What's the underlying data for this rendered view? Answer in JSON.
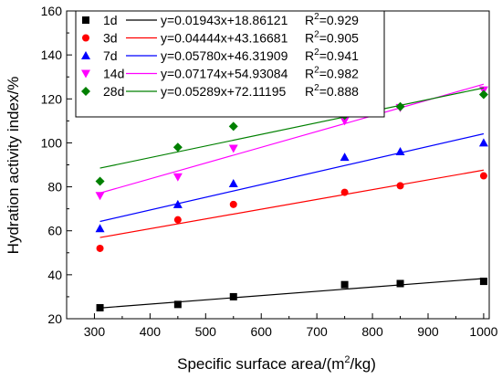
{
  "chart_data": {
    "type": "scatter",
    "xlabel": "Specific surface area/(m",
    "xlabel_sup": "2",
    "xlabel_end": "/kg)",
    "ylabel": "Hydration activity index/%",
    "xlim": [
      250,
      1010
    ],
    "ylim": [
      20,
      160
    ],
    "xticks": [
      300,
      400,
      500,
      600,
      700,
      800,
      900,
      1000
    ],
    "yticks": [
      20,
      40,
      60,
      80,
      100,
      120,
      140,
      160
    ],
    "grid": false,
    "legend_position": "top-left",
    "r2_prefix": "R",
    "r2_sup": "2",
    "series": [
      {
        "name": "1d",
        "color": "#000000",
        "marker": "square",
        "equation": "y=0.01943x+18.86121",
        "r2_value": "=0.929",
        "x": [
          310,
          450,
          550,
          750,
          850,
          1000
        ],
        "y": [
          25.0,
          26.5,
          30.0,
          35.5,
          36.0,
          37.0
        ],
        "slope": 0.01943,
        "intercept": 18.86121
      },
      {
        "name": "3d",
        "color": "#ff0000",
        "marker": "circle",
        "equation": "y=0.04444x+43.16681",
        "r2_value": "=0.905",
        "x": [
          310,
          450,
          550,
          750,
          850,
          1000
        ],
        "y": [
          52.0,
          65.0,
          72.0,
          77.5,
          80.5,
          85.0
        ],
        "slope": 0.04444,
        "intercept": 43.16681
      },
      {
        "name": "7d",
        "color": "#0000ff",
        "marker": "triangle-up",
        "equation": "y=0.05780x+46.31909",
        "r2_value": "=0.941",
        "x": [
          310,
          450,
          550,
          750,
          850,
          1000
        ],
        "y": [
          61.0,
          72.0,
          81.5,
          93.5,
          96.0,
          100.0
        ],
        "slope": 0.0578,
        "intercept": 46.31909
      },
      {
        "name": "14d",
        "color": "#ff00ff",
        "marker": "triangle-down",
        "equation": "y=0.07174x+54.93084",
        "r2_value": "=0.982",
        "x": [
          310,
          450,
          550,
          750,
          850,
          1000
        ],
        "y": [
          76.0,
          84.5,
          97.5,
          110.0,
          116.0,
          124.0
        ],
        "slope": 0.07174,
        "intercept": 54.93084
      },
      {
        "name": "28d",
        "color": "#008000",
        "marker": "diamond",
        "equation": "y=0.05289x+72.11195",
        "r2_value": "=0.888",
        "x": [
          310,
          450,
          550,
          750,
          850,
          1000
        ],
        "y": [
          82.5,
          98.0,
          107.5,
          112.5,
          116.5,
          122.0
        ],
        "slope": 0.05289,
        "intercept": 72.11195
      }
    ]
  }
}
